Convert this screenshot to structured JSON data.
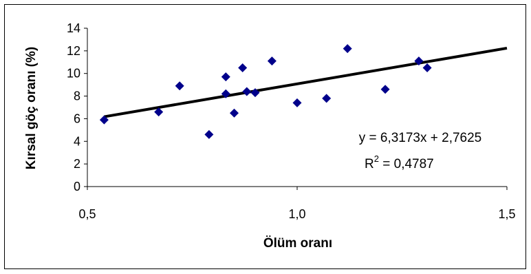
{
  "chart_data": {
    "type": "scatter",
    "xlabel": "Ölüm oranı",
    "ylabel": "Kırsal göç oranı (%)",
    "xlim": [
      0.5,
      1.5
    ],
    "ylim": [
      0,
      14
    ],
    "x_ticks": [
      0.5,
      1.0,
      1.5
    ],
    "x_tick_labels": [
      "0,5",
      "1,0",
      "1,5"
    ],
    "y_ticks": [
      0,
      2,
      4,
      6,
      8,
      10,
      12,
      14
    ],
    "y_tick_labels": [
      "0",
      "2",
      "4",
      "6",
      "8",
      "10",
      "12",
      "14"
    ],
    "grid": false,
    "marker_color": "#00008B",
    "points": [
      {
        "x": 0.54,
        "y": 5.9
      },
      {
        "x": 0.67,
        "y": 6.6
      },
      {
        "x": 0.72,
        "y": 8.9
      },
      {
        "x": 0.79,
        "y": 4.6
      },
      {
        "x": 0.83,
        "y": 9.7
      },
      {
        "x": 0.83,
        "y": 8.2
      },
      {
        "x": 0.85,
        "y": 6.5
      },
      {
        "x": 0.87,
        "y": 10.5
      },
      {
        "x": 0.88,
        "y": 8.4
      },
      {
        "x": 0.9,
        "y": 8.3
      },
      {
        "x": 0.94,
        "y": 11.1
      },
      {
        "x": 1.0,
        "y": 7.4
      },
      {
        "x": 1.07,
        "y": 7.8
      },
      {
        "x": 1.12,
        "y": 12.2
      },
      {
        "x": 1.21,
        "y": 8.6
      },
      {
        "x": 1.29,
        "y": 11.1
      },
      {
        "x": 1.31,
        "y": 10.5
      }
    ],
    "trendline": {
      "type": "linear",
      "slope": 6.3173,
      "intercept": 2.7625,
      "x_range": [
        0.54,
        1.5
      ],
      "color": "#000000",
      "equation_label": "y = 6,3173x + 2,7625",
      "r2_prefix": "R",
      "r2_superscript": "2",
      "r2_value": " = 0,4787"
    }
  }
}
